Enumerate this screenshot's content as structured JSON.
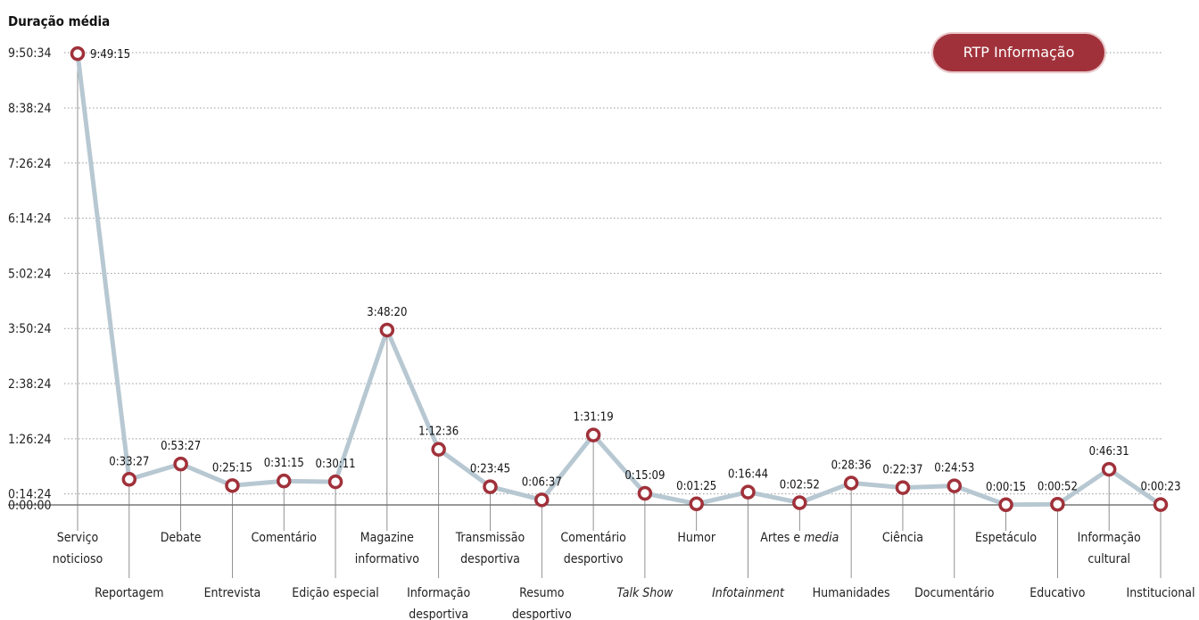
{
  "chart_data": {
    "type": "line",
    "ylabel": "Duração média",
    "y_ticks": [
      "0:00:00",
      "0:14:24",
      "1:26:24",
      "2:38:24",
      "3:50:24",
      "5:02:24",
      "6:14:24",
      "7:26:24",
      "8:38:24",
      "9:50:34"
    ],
    "legend": "RTP Informação",
    "series": [
      {
        "name": "RTP Informação",
        "points": [
          {
            "category": "Serviço noticioso",
            "value": "9:49:15"
          },
          {
            "category": "Reportagem",
            "value": "0:33:27"
          },
          {
            "category": "Debate",
            "value": "0:53:27"
          },
          {
            "category": "Entrevista",
            "value": "0:25:15"
          },
          {
            "category": "Comentário",
            "value": "0:31:15"
          },
          {
            "category": "Edição especial",
            "value": "0:30:11"
          },
          {
            "category": "Magazine informativo",
            "value": "3:48:20"
          },
          {
            "category": "Informação desportiva",
            "value": "1:12:36"
          },
          {
            "category": "Transmissão desportiva",
            "value": "0:23:45"
          },
          {
            "category": "Resumo desportivo",
            "value": "0:06:37"
          },
          {
            "category": "Comentário desportivo",
            "value": "1:31:19"
          },
          {
            "category": "Talk Show",
            "value": "0:15:09"
          },
          {
            "category": "Humor",
            "value": "0:01:25"
          },
          {
            "category": "Infotainment",
            "value": "0:16:44"
          },
          {
            "category": "Artes e media",
            "value": "0:02:52"
          },
          {
            "category": "Humanidades",
            "value": "0:28:36"
          },
          {
            "category": "Ciência",
            "value": "0:22:37"
          },
          {
            "category": "Documentário",
            "value": "0:24:53"
          },
          {
            "category": "Espetáculo",
            "value": "0:00:15"
          },
          {
            "category": "Educativo",
            "value": "0:00:52"
          },
          {
            "category": "Informação cultural",
            "value": "0:46:31"
          },
          {
            "category": "Institucional",
            "value": "0:00:23"
          }
        ]
      }
    ],
    "category_labels": [
      {
        "lines": [
          "Serviço",
          "noticioso"
        ],
        "italic_part": ""
      },
      {
        "lines": [
          "Reportagem"
        ],
        "italic_part": ""
      },
      {
        "lines": [
          "Debate"
        ],
        "italic_part": ""
      },
      {
        "lines": [
          "Entrevista"
        ],
        "italic_part": ""
      },
      {
        "lines": [
          "Comentário"
        ],
        "italic_part": ""
      },
      {
        "lines": [
          "Edição especial"
        ],
        "italic_part": ""
      },
      {
        "lines": [
          "Magazine",
          "informativo"
        ],
        "italic_part": ""
      },
      {
        "lines": [
          "Informação",
          "desportiva"
        ],
        "italic_part": ""
      },
      {
        "lines": [
          "Transmissão",
          "desportiva"
        ],
        "italic_part": ""
      },
      {
        "lines": [
          "Resumo",
          "desportivo"
        ],
        "italic_part": ""
      },
      {
        "lines": [
          "Comentário",
          "desportivo"
        ],
        "italic_part": ""
      },
      {
        "lines": [
          "Talk Show"
        ],
        "italic_part": "all"
      },
      {
        "lines": [
          "Humor"
        ],
        "italic_part": ""
      },
      {
        "lines": [
          "Infotainment"
        ],
        "italic_part": "all"
      },
      {
        "lines": [
          "Artes e media"
        ],
        "italic_part": "media"
      },
      {
        "lines": [
          "Humanidades"
        ],
        "italic_part": ""
      },
      {
        "lines": [
          "Ciência"
        ],
        "italic_part": ""
      },
      {
        "lines": [
          "Documentário"
        ],
        "italic_part": ""
      },
      {
        "lines": [
          "Espetáculo"
        ],
        "italic_part": ""
      },
      {
        "lines": [
          "Educativo"
        ],
        "italic_part": ""
      },
      {
        "lines": [
          "Informação",
          "cultural"
        ],
        "italic_part": ""
      },
      {
        "lines": [
          "Institucional"
        ],
        "italic_part": ""
      }
    ],
    "colors": {
      "line": "#b7c8d2",
      "marker_stroke": "#a0313a",
      "marker_fill": "#ffffff",
      "legend_bg": "#a0313a",
      "grid": "#9a9a9a",
      "text": "#111111"
    },
    "grid": true,
    "legend_position": "top-right"
  }
}
